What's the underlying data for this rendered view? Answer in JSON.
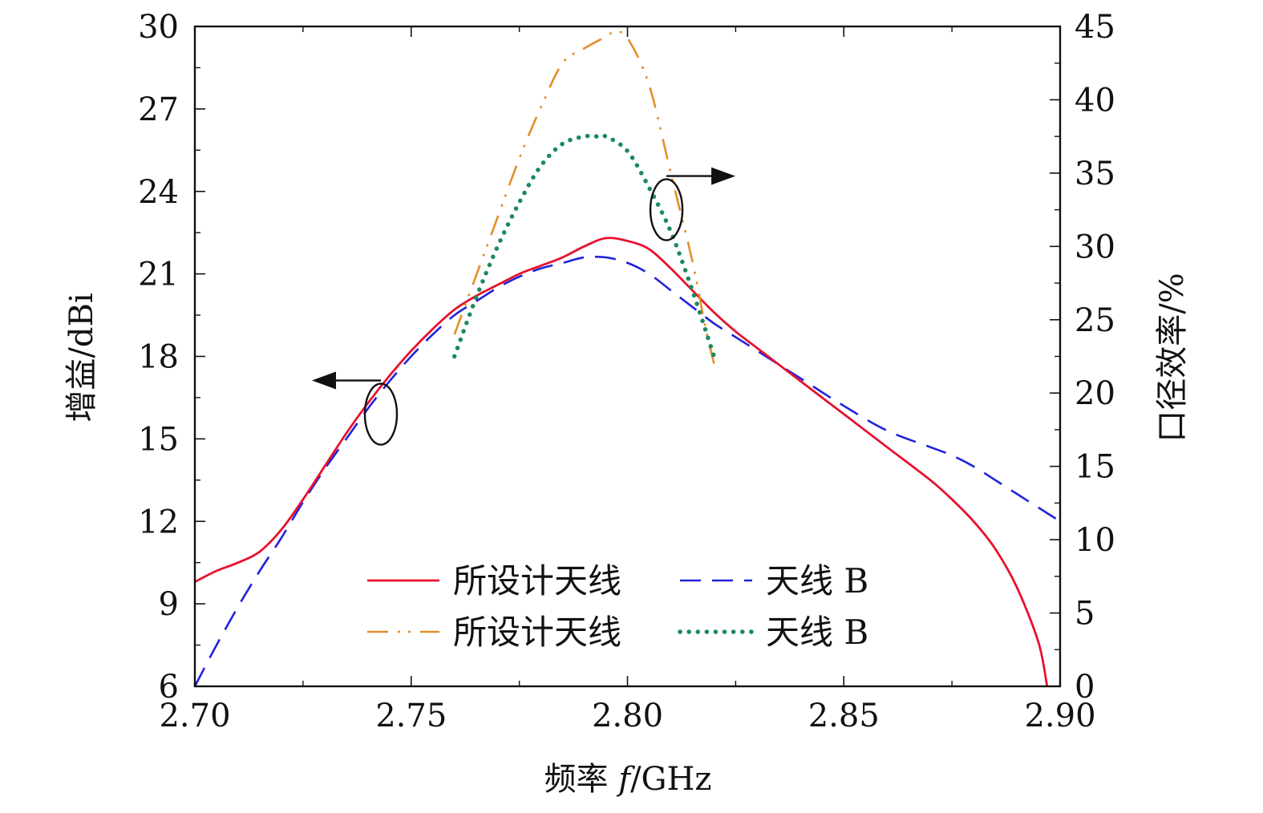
{
  "chart_data": {
    "type": "line",
    "title": "",
    "xlabel_prefix": "频率 ",
    "xlabel_var": "f",
    "xlabel_unit": "/GHz",
    "ylabel_left": "增益/dBi",
    "ylabel_right": "口径效率/%",
    "xlim": [
      2.7,
      2.9
    ],
    "ylim_left": [
      6,
      30
    ],
    "ylim_right": [
      0,
      45
    ],
    "xticks": [
      "2.70",
      "2.75",
      "2.80",
      "2.85",
      "2.90"
    ],
    "yticks_left": [
      "6",
      "9",
      "12",
      "15",
      "18",
      "21",
      "24",
      "27",
      "30"
    ],
    "yticks_right": [
      "0",
      "5",
      "10",
      "15",
      "20",
      "25",
      "30",
      "35",
      "40",
      "45"
    ],
    "grid": false,
    "legend_position": "lower-center",
    "series": [
      {
        "name": "所设计天线",
        "axis": "left",
        "color": "#e8112d",
        "style": "solid",
        "x": [
          2.7,
          2.705,
          2.71,
          2.715,
          2.72,
          2.725,
          2.73,
          2.735,
          2.74,
          2.745,
          2.75,
          2.755,
          2.76,
          2.765,
          2.77,
          2.775,
          2.78,
          2.785,
          2.79,
          2.795,
          2.8,
          2.805,
          2.81,
          2.815,
          2.82,
          2.825,
          2.83,
          2.84,
          2.85,
          2.86,
          2.87,
          2.875,
          2.88,
          2.885,
          2.89,
          2.895,
          2.897
        ],
        "y": [
          9.8,
          10.2,
          10.5,
          10.9,
          11.7,
          12.8,
          14.0,
          15.2,
          16.3,
          17.3,
          18.2,
          19.0,
          19.7,
          20.2,
          20.6,
          21.0,
          21.3,
          21.6,
          22.0,
          22.3,
          22.2,
          21.9,
          21.2,
          20.4,
          19.6,
          18.9,
          18.3,
          17.1,
          15.9,
          14.7,
          13.5,
          12.8,
          12.0,
          11.0,
          9.6,
          7.6,
          6.0
        ]
      },
      {
        "name": "天线 B",
        "axis": "left",
        "color": "#2222dd",
        "style": "dashed",
        "x": [
          2.7,
          2.705,
          2.71,
          2.715,
          2.72,
          2.725,
          2.73,
          2.735,
          2.74,
          2.745,
          2.75,
          2.755,
          2.76,
          2.765,
          2.77,
          2.775,
          2.78,
          2.785,
          2.79,
          2.795,
          2.8,
          2.805,
          2.81,
          2.815,
          2.82,
          2.825,
          2.83,
          2.84,
          2.85,
          2.86,
          2.87,
          2.875,
          2.88,
          2.885,
          2.89,
          2.895,
          2.9
        ],
        "y": [
          6.0,
          7.5,
          8.9,
          10.2,
          11.4,
          12.7,
          13.9,
          15.0,
          16.1,
          17.1,
          18.0,
          18.8,
          19.5,
          20.0,
          20.5,
          20.9,
          21.2,
          21.4,
          21.6,
          21.6,
          21.4,
          21.0,
          20.4,
          19.8,
          19.2,
          18.7,
          18.2,
          17.2,
          16.2,
          15.3,
          14.7,
          14.4,
          14.0,
          13.5,
          13.0,
          12.5,
          12.0
        ]
      },
      {
        "name": "所设计天线",
        "axis": "right",
        "color": "#e38f2a",
        "style": "dash-dot-dot",
        "x": [
          2.76,
          2.765,
          2.77,
          2.775,
          2.78,
          2.785,
          2.79,
          2.795,
          2.797,
          2.8,
          2.805,
          2.81,
          2.815,
          2.818,
          2.82
        ],
        "y": [
          24.0,
          28.0,
          32.0,
          36.0,
          39.5,
          42.5,
          43.5,
          44.3,
          44.6,
          44.2,
          41.0,
          35.0,
          29.0,
          24.5,
          22.0
        ]
      },
      {
        "name": "天线 B",
        "axis": "right",
        "color": "#1c8a5a",
        "style": "dotted",
        "x": [
          2.76,
          2.765,
          2.77,
          2.775,
          2.78,
          2.785,
          2.79,
          2.793,
          2.795,
          2.8,
          2.805,
          2.81,
          2.815,
          2.82
        ],
        "y": [
          22.5,
          26.5,
          30.0,
          33.0,
          35.5,
          37.0,
          37.5,
          37.5,
          37.5,
          36.5,
          34.0,
          31.0,
          27.0,
          22.5
        ]
      }
    ],
    "annotations": [
      {
        "type": "ellipse-arrow",
        "axis": "left",
        "x": 2.743,
        "y": 15.9,
        "direction": "left"
      },
      {
        "type": "ellipse-arrow",
        "axis": "right",
        "x": 2.809,
        "y": 32.5,
        "direction": "right"
      }
    ]
  }
}
